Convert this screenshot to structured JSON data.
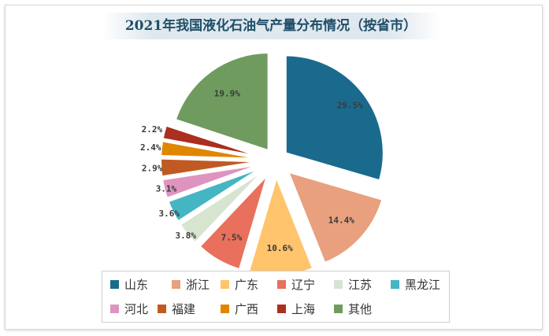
{
  "chart_data": {
    "type": "pie",
    "title": "2021年我国液化石油气产量分布情况（按省市）",
    "slices": [
      {
        "label": "山东",
        "value": 29.5,
        "value_label": "29.5%",
        "color": "#1a6a8e"
      },
      {
        "label": "浙江",
        "value": 14.4,
        "value_label": "14.4%",
        "color": "#e8a07e"
      },
      {
        "label": "广东",
        "value": 10.6,
        "value_label": "10.6%",
        "color": "#ffc46c"
      },
      {
        "label": "辽宁",
        "value": 7.5,
        "value_label": "7.5%",
        "color": "#e8705c"
      },
      {
        "label": "江苏",
        "value": 3.8,
        "value_label": "3.8%",
        "color": "#d6e4d0"
      },
      {
        "label": "黑龙江",
        "value": 3.6,
        "value_label": "3.6%",
        "color": "#45b5c4"
      },
      {
        "label": "河北",
        "value": 3.1,
        "value_label": "3.1%",
        "color": "#df94bf"
      },
      {
        "label": "福建",
        "value": 2.9,
        "value_label": "2.9%",
        "color": "#c05a22"
      },
      {
        "label": "广西",
        "value": 2.4,
        "value_label": "2.4%",
        "color": "#e08600"
      },
      {
        "label": "上海",
        "value": 2.2,
        "value_label": "2.2%",
        "color": "#ab2e1e"
      },
      {
        "label": "其他",
        "value": 19.9,
        "value_label": "19.9%",
        "color": "#6f9c5e"
      }
    ],
    "legend_position": "bottom"
  }
}
